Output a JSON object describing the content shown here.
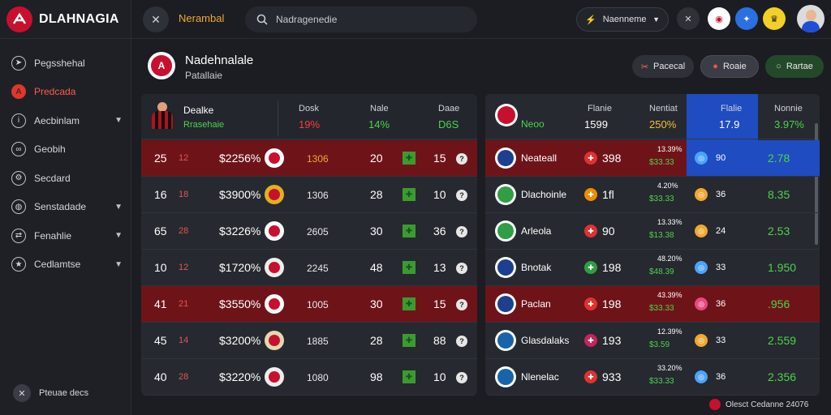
{
  "app": {
    "name": "DLAHNAGIA"
  },
  "sidebar": {
    "items": [
      {
        "label": "Pegsshehal",
        "icon": "cursor-icon",
        "caret": false,
        "active": false
      },
      {
        "label": "Predcada",
        "icon": "club-icon",
        "caret": false,
        "active": true
      },
      {
        "label": "Aecbinlam",
        "icon": "info-icon",
        "caret": true,
        "active": false
      },
      {
        "label": "Geobih",
        "icon": "link-icon",
        "caret": false,
        "active": false
      },
      {
        "label": "Secdard",
        "icon": "gear-icon",
        "caret": false,
        "active": false
      },
      {
        "label": "Senstadade",
        "icon": "globe-icon",
        "caret": true,
        "active": false
      },
      {
        "label": "Fenahlie",
        "icon": "shuffle-icon",
        "caret": true,
        "active": false
      },
      {
        "label": "Cedlamtse",
        "icon": "star-icon",
        "caret": true,
        "active": false
      }
    ],
    "footer_label": "Pteuae decs"
  },
  "topbar": {
    "title": "Nerambal",
    "search_placeholder": "Nadragenedie",
    "lang_label": "Naenneme"
  },
  "header": {
    "title": "Nadehnalale",
    "subtitle": "Patallaie",
    "buttons": [
      "Pacecal",
      "Roaie",
      "Rartae"
    ]
  },
  "left_table": {
    "head": {
      "player_name": "Dealke",
      "player_sub": "Rrasehaie",
      "cols": [
        {
          "label": "Dosk",
          "value": "19%",
          "color": "#ff3b3b"
        },
        {
          "label": "Nale",
          "value": "14%",
          "color": "#4cd34c"
        },
        {
          "label": "Daae",
          "value": "D6S",
          "color": "#4cd34c"
        }
      ]
    },
    "rows": [
      {
        "rank": "25",
        "mark": "12",
        "pct": "$2256%",
        "val": "1306",
        "val_color": "#f0a830",
        "score": "20",
        "num": "15",
        "hl": true,
        "badge": "#ffffff"
      },
      {
        "rank": "16",
        "mark": "18",
        "pct": "$3900%",
        "val": "1306",
        "val_color": "#e8e8ea",
        "score": "28",
        "num": "10",
        "hl": false,
        "badge": "#e0b020"
      },
      {
        "rank": "65",
        "mark": "28",
        "pct": "$3226%",
        "val": "2605",
        "val_color": "#e8e8ea",
        "score": "30",
        "num": "36",
        "hl": false,
        "badge": "#ffffff"
      },
      {
        "rank": "10",
        "mark": "12",
        "pct": "$1720%",
        "val": "2245",
        "val_color": "#e8e8ea",
        "score": "48",
        "num": "13",
        "hl": false,
        "badge": "#eeeeee"
      },
      {
        "rank": "41",
        "mark": "21",
        "pct": "$3550%",
        "val": "1005",
        "val_color": "#e8e8ea",
        "score": "30",
        "num": "15",
        "hl": true,
        "badge": "#ffffff"
      },
      {
        "rank": "45",
        "mark": "14",
        "pct": "$3200%",
        "val": "1885",
        "val_color": "#e8e8ea",
        "score": "28",
        "num": "88",
        "hl": false,
        "badge": "#e6d6b0"
      },
      {
        "rank": "40",
        "mark": "28",
        "pct": "$3220%",
        "val": "1080",
        "val_color": "#e8e8ea",
        "score": "98",
        "num": "10",
        "hl": false,
        "badge": "#eeeeee"
      }
    ]
  },
  "right_table": {
    "head": {
      "team_label": "Neoo",
      "cols": [
        {
          "label": "Flanie",
          "value": "1599",
          "color": "#ffffff"
        },
        {
          "label": "Nentiat",
          "value": "250%",
          "color": "#f0c030"
        },
        {
          "label": "Flalie",
          "value": "17.9",
          "color": "#ffffff"
        },
        {
          "label": "Nonnie",
          "value": "3.97%",
          "color": "#4cd34c"
        }
      ]
    },
    "rows": [
      {
        "team": "Neateall",
        "num": "398",
        "v1": "13.39%",
        "v2": "$33.33",
        "small": "90",
        "big": "2.78",
        "hl": true,
        "dot": "#e03131",
        "dot2": "#4aa3ff",
        "logo": "#1c3f8f"
      },
      {
        "team": "Dlachoinle",
        "num": "1fl",
        "v1": "4.20%",
        "v2": "$33.33",
        "small": "36",
        "big": "8.35",
        "hl": false,
        "dot": "#f08c00",
        "dot2": "#f0a830",
        "logo": "#2f9e44"
      },
      {
        "team": "Arleola",
        "num": "90",
        "v1": "13.33%",
        "v2": "$13.38",
        "small": "24",
        "big": "2.53",
        "hl": false,
        "dot": "#e03131",
        "dot2": "#f0a830",
        "logo": "#2f9e44"
      },
      {
        "team": "Bnotak",
        "num": "198",
        "v1": "48.20%",
        "v2": "$48.39",
        "small": "33",
        "big": "1.950",
        "hl": false,
        "dot": "#2f9e44",
        "dot2": "#4aa3ff",
        "logo": "#1c3f8f"
      },
      {
        "team": "Paclan",
        "num": "198",
        "v1": "43.39%",
        "v2": "$33.33",
        "small": "36",
        "big": ".956",
        "hl": true,
        "dot": "#e03131",
        "dot2": "#e64980",
        "logo": "#1c3f8f"
      },
      {
        "team": "Glasdalaks",
        "num": "193",
        "v1": "12.39%",
        "v2": "$3.59",
        "small": "33",
        "big": "2.559",
        "hl": false,
        "dot": "#c2255c",
        "dot2": "#f0a830",
        "logo": "#1864ab"
      },
      {
        "team": "Nlenelac",
        "num": "933",
        "v1": "33.20%",
        "v2": "$33.33",
        "small": "36",
        "big": "2.356",
        "hl": false,
        "dot": "#e03131",
        "dot2": "#4aa3ff",
        "logo": "#1864ab"
      }
    ]
  },
  "footer": {
    "text": "Olesct Cedanne 24076"
  }
}
